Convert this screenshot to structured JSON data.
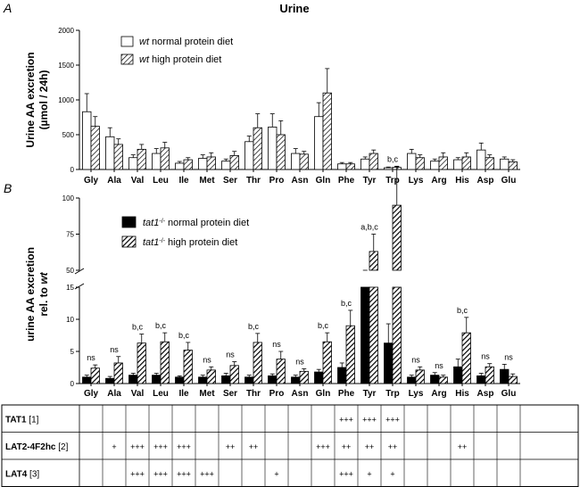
{
  "figure": {
    "panel_a_label": "A",
    "panel_b_label": "B"
  },
  "chart_data": [
    {
      "type": "bar",
      "title": "Urine",
      "ylabel_line1": "Urine AA excretion",
      "ylabel_line2": "(µmol / 24h)",
      "ylim": [
        0,
        2000
      ],
      "yticks": [
        0,
        500,
        1000,
        1500,
        2000
      ],
      "categories": [
        "Gly",
        "Ala",
        "Val",
        "Leu",
        "Ile",
        "Met",
        "Ser",
        "Thr",
        "Pro",
        "Asn",
        "Gln",
        "Phe",
        "Tyr",
        "Trp",
        "Lys",
        "Arg",
        "His",
        "Asp",
        "Glu"
      ],
      "series": [
        {
          "name_italic": "wt",
          "name": " normal protein diet",
          "style": "open",
          "values": [
            830,
            470,
            170,
            230,
            90,
            160,
            120,
            400,
            610,
            230,
            760,
            80,
            150,
            25,
            230,
            120,
            140,
            280,
            150
          ],
          "errors": [
            260,
            130,
            40,
            70,
            25,
            50,
            30,
            80,
            190,
            70,
            200,
            20,
            30,
            10,
            60,
            30,
            30,
            100,
            30
          ]
        },
        {
          "name_italic": "wt",
          "name": " high protein diet",
          "style": "hatched",
          "values": [
            620,
            360,
            290,
            310,
            140,
            180,
            200,
            600,
            500,
            220,
            1100,
            80,
            230,
            30,
            170,
            180,
            180,
            170,
            110
          ],
          "errors": [
            140,
            80,
            70,
            80,
            30,
            60,
            60,
            200,
            200,
            40,
            350,
            20,
            50,
            10,
            40,
            60,
            60,
            40,
            30
          ]
        }
      ]
    },
    {
      "type": "bar",
      "ylabel_line1": "urine AA excretion",
      "ylabel_line2_prefix": "rel. to ",
      "ylabel_line2_italic": "wt",
      "y_axis_broken": true,
      "ylim_lower": [
        0,
        15
      ],
      "yticks_lower": [
        0,
        5,
        10,
        15
      ],
      "ylim_upper": [
        50,
        100
      ],
      "yticks_upper": [
        50,
        75,
        100
      ],
      "categories": [
        "Gly",
        "Ala",
        "Val",
        "Leu",
        "Ile",
        "Met",
        "Ser",
        "Thr",
        "Pro",
        "Asn",
        "Gln",
        "Phe",
        "Tyr",
        "Trp",
        "Lys",
        "Arg",
        "His",
        "Asp",
        "Glu"
      ],
      "series": [
        {
          "name_italic": "tat1",
          "name_sup": "-/-",
          "name": " normal protein diet",
          "style": "solid",
          "values": [
            1.0,
            0.8,
            1.3,
            1.3,
            1.0,
            1.0,
            1.2,
            1.0,
            1.2,
            1.0,
            1.8,
            2.5,
            33,
            6.3,
            1.0,
            1.3,
            2.6,
            1.2,
            2.2
          ],
          "errors": [
            0.3,
            0.3,
            0.3,
            0.3,
            0.2,
            0.3,
            0.4,
            0.3,
            0.3,
            0.3,
            0.4,
            0.7,
            6,
            3.0,
            0.3,
            0.4,
            1.2,
            0.4,
            0.8
          ]
        },
        {
          "name_italic": "tat1",
          "name_sup": "-/-",
          "name": " high protein diet",
          "style": "hatched",
          "values": [
            2.4,
            3.2,
            6.3,
            6.5,
            5.2,
            2.1,
            2.8,
            6.4,
            3.8,
            1.9,
            6.5,
            9.0,
            63,
            95,
            2.1,
            1.0,
            7.9,
            2.6,
            1.1
          ],
          "errors": [
            0.5,
            1.0,
            1.4,
            1.4,
            1.2,
            0.5,
            0.6,
            1.4,
            1.2,
            0.4,
            1.4,
            2.4,
            12,
            27,
            0.5,
            0.3,
            2.4,
            0.5,
            0.4
          ]
        }
      ],
      "annotations": [
        "ns",
        "ns",
        "b,c",
        "b,c",
        "b,c",
        "ns",
        "ns",
        "b,c",
        "ns",
        "ns",
        "b,c",
        "b,c",
        "a,b,c",
        "b,c",
        "ns",
        "ns",
        "b,c",
        "ns",
        "ns"
      ]
    }
  ],
  "table": {
    "rows": [
      {
        "name": "TAT1",
        "ref": " [1]",
        "cells": [
          "",
          "",
          "",
          "",
          "",
          "",
          "",
          "",
          "",
          "",
          "",
          "+++",
          "+++",
          "+++",
          "",
          "",
          "",
          "",
          ""
        ]
      },
      {
        "name": "LAT2-4F2hc",
        "ref": " [2]",
        "cells": [
          "",
          "+",
          "+++",
          "+++",
          "+++",
          "",
          "++",
          "++",
          "",
          "",
          "+++",
          "++",
          "++",
          "++",
          "",
          "",
          "++",
          "",
          ""
        ]
      },
      {
        "name": "LAT4",
        "ref": " [3]",
        "cells": [
          "",
          "",
          "+++",
          "+++",
          "+++",
          "+++",
          "",
          "",
          "+",
          "",
          "",
          "+++",
          "+",
          "+",
          "",
          "",
          "",
          "",
          ""
        ]
      }
    ]
  }
}
